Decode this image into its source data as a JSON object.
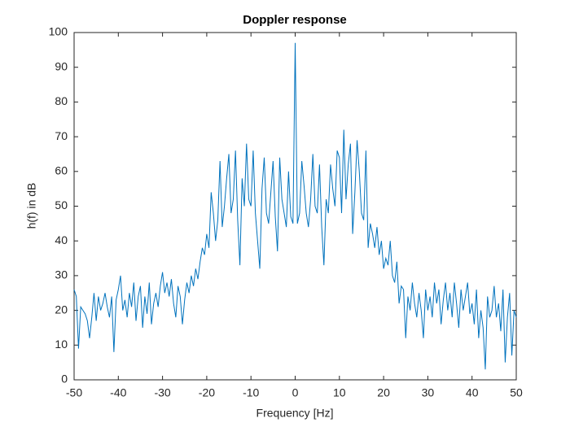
{
  "chart_data": {
    "type": "line",
    "title": "Doppler response",
    "x_label": "Frequency [Hz]",
    "y_label": "h(f) in dB",
    "color": "#0072bd",
    "x": [
      -50,
      -49.5,
      -49,
      -48.5,
      -48,
      -47.5,
      -47,
      -46.5,
      -46,
      -45.5,
      -45,
      -44.5,
      -44,
      -43.5,
      -43,
      -42.5,
      -42,
      -41.5,
      -41,
      -40.5,
      -40,
      -39.5,
      -39,
      -38.5,
      -38,
      -37.5,
      -37,
      -36.5,
      -36,
      -35.5,
      -35,
      -34.5,
      -34,
      -33.5,
      -33,
      -32.5,
      -32,
      -31.5,
      -31,
      -30.5,
      -30,
      -29.5,
      -29,
      -28.5,
      -28,
      -27.5,
      -27,
      -26.5,
      -26,
      -25.5,
      -25,
      -24.5,
      -24,
      -23.5,
      -23,
      -22.5,
      -22,
      -21.5,
      -21,
      -20.5,
      -20,
      -19.5,
      -19,
      -18.5,
      -18,
      -17.5,
      -17,
      -16.5,
      -16,
      -15.5,
      -15,
      -14.5,
      -14,
      -13.5,
      -13,
      -12.5,
      -12,
      -11.5,
      -11,
      -10.5,
      -10,
      -9.5,
      -9,
      -8.5,
      -8,
      -7.5,
      -7,
      -6.5,
      -6,
      -5.5,
      -5,
      -4.5,
      -4,
      -3.5,
      -3,
      -2.5,
      -2,
      -1.5,
      -1,
      -0.5,
      0,
      0.5,
      1,
      1.5,
      2,
      2.5,
      3,
      3.5,
      4,
      4.5,
      5,
      5.5,
      6,
      6.5,
      7,
      7.5,
      8,
      8.5,
      9,
      9.5,
      10,
      10.5,
      11,
      11.5,
      12,
      12.5,
      13,
      13.5,
      14,
      14.5,
      15,
      15.5,
      16,
      16.5,
      17,
      17.5,
      18,
      18.5,
      19,
      19.5,
      20,
      20.5,
      21,
      21.5,
      22,
      22.5,
      23,
      23.5,
      24,
      24.5,
      25,
      25.5,
      26,
      26.5,
      27,
      27.5,
      28,
      28.5,
      29,
      29.5,
      30,
      30.5,
      31,
      31.5,
      32,
      32.5,
      33,
      33.5,
      34,
      34.5,
      35,
      35.5,
      36,
      36.5,
      37,
      37.5,
      38,
      38.5,
      39,
      39.5,
      40,
      40.5,
      41,
      41.5,
      42,
      42.5,
      43,
      43.5,
      44,
      44.5,
      45,
      45.5,
      46,
      46.5,
      47,
      47.5,
      48,
      48.5,
      49,
      49.5,
      50
    ],
    "values": [
      26,
      24,
      9,
      21,
      20,
      19,
      17,
      12,
      18,
      25,
      17,
      24,
      20,
      22,
      25,
      21,
      18,
      24,
      8,
      23,
      26,
      30,
      20,
      23,
      18,
      25,
      21,
      28,
      17,
      24,
      27,
      15,
      24,
      19,
      28,
      16,
      22,
      25,
      21,
      27,
      31,
      25,
      28,
      24,
      29,
      22,
      18,
      27,
      24,
      16,
      23,
      28,
      25,
      30,
      27,
      32,
      29,
      34,
      38,
      36,
      42,
      38,
      54,
      48,
      40,
      46,
      63,
      44,
      50,
      58,
      65,
      48,
      52,
      66,
      46,
      33,
      58,
      50,
      68,
      52,
      50,
      66,
      48,
      40,
      32,
      55,
      64,
      48,
      45,
      54,
      63,
      47,
      37,
      64,
      52,
      48,
      44,
      60,
      47,
      45,
      97,
      45,
      48,
      63,
      56,
      48,
      44,
      52,
      65,
      50,
      48,
      62,
      44,
      33,
      52,
      48,
      62,
      55,
      50,
      66,
      64,
      48,
      72,
      52,
      62,
      68,
      42,
      54,
      69,
      60,
      48,
      46,
      66,
      38,
      45,
      42,
      38,
      44,
      36,
      40,
      32,
      35,
      33,
      40,
      30,
      28,
      34,
      22,
      27,
      26,
      12,
      24,
      20,
      28,
      22,
      18,
      25,
      20,
      12,
      26,
      20,
      24,
      18,
      28,
      22,
      26,
      16,
      23,
      28,
      20,
      25,
      18,
      28,
      22,
      15,
      26,
      20,
      24,
      28,
      19,
      22,
      16,
      26,
      12,
      20,
      15,
      3,
      24,
      18,
      20,
      27,
      18,
      22,
      14,
      26,
      5,
      18,
      25,
      7,
      20,
      18
    ],
    "xlim": [
      -50,
      50
    ],
    "ylim": [
      0,
      100
    ],
    "xticks": [
      -50,
      -40,
      -30,
      -20,
      -10,
      0,
      10,
      20,
      30,
      40,
      50
    ],
    "yticks": [
      0,
      10,
      20,
      30,
      40,
      50,
      60,
      70,
      80,
      90,
      100
    ]
  }
}
